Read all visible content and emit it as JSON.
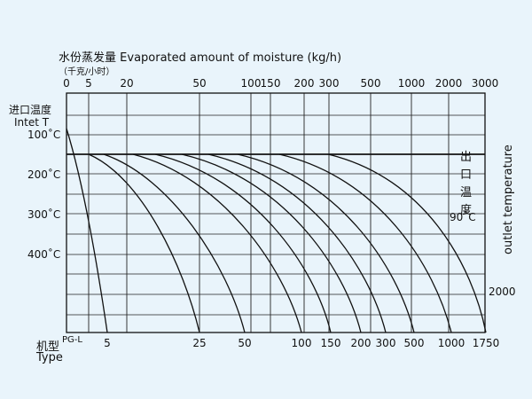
{
  "chart_data": {
    "type": "line",
    "title_cn": "水份蒸发量",
    "title_en": "Evaporated amount of moisture (kg/h)",
    "title_sub": "（千克/小时）",
    "top_axis_ticks": [
      "0",
      "5",
      "20",
      "50",
      "100",
      "150",
      "200",
      "300",
      "500",
      "1000",
      "2000",
      "3000"
    ],
    "left_label_cn": "进口温度",
    "left_label_en": "Intet T",
    "inlet_ticks": [
      "100˚C",
      "200˚C",
      "300˚C",
      "400˚C"
    ],
    "right_label_cn": [
      "出",
      "口",
      "温",
      "度"
    ],
    "right_label_en": "outlet temperature",
    "outlet_temp_label": "90˚C",
    "right_value_label": "2000",
    "bottom_label_cn": "机型",
    "bottom_label_code": "PG-L",
    "bottom_label_en": "Type",
    "model_ticks": [
      "5",
      "25",
      "50",
      "100",
      "150",
      "200",
      "300",
      "500",
      "1000",
      "1750"
    ],
    "grid": true
  }
}
